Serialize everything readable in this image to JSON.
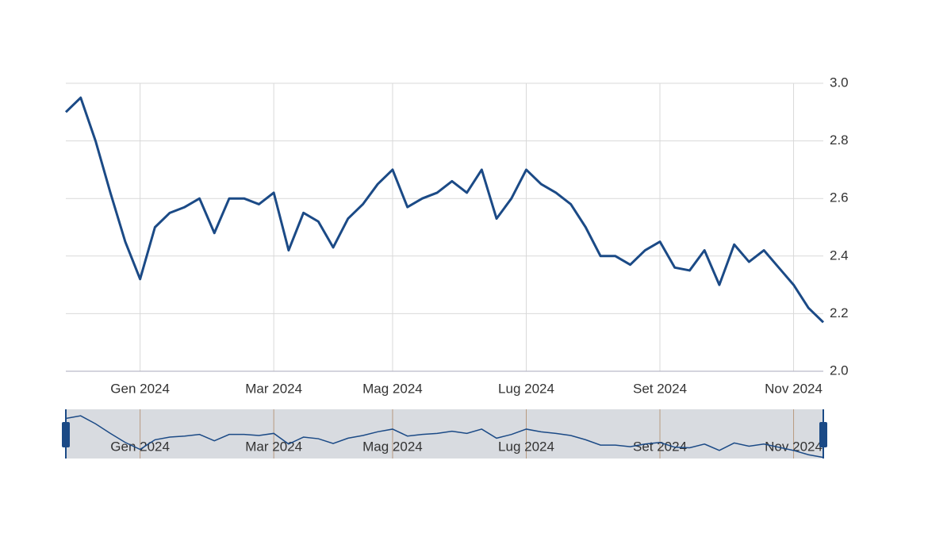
{
  "chart_data": {
    "type": "line",
    "categories": [
      null,
      null,
      null,
      null,
      null,
      "Gen 2024",
      null,
      null,
      null,
      null,
      null,
      null,
      null,
      null,
      "Mar 2024",
      null,
      null,
      null,
      null,
      null,
      null,
      null,
      "Mag 2024",
      null,
      null,
      null,
      null,
      null,
      null,
      null,
      null,
      "Lug 2024",
      null,
      null,
      null,
      null,
      null,
      null,
      null,
      null,
      "Set 2024",
      null,
      null,
      null,
      null,
      null,
      null,
      null,
      null,
      "Nov 2024",
      null,
      null
    ],
    "series": [
      {
        "color": "#1b4a86",
        "values": [
          2.9,
          2.95,
          2.8,
          2.62,
          2.45,
          2.32,
          2.5,
          2.55,
          2.57,
          2.6,
          2.48,
          2.6,
          2.6,
          2.58,
          2.62,
          2.42,
          2.55,
          2.52,
          2.43,
          2.53,
          2.58,
          2.65,
          2.7,
          2.57,
          2.6,
          2.62,
          2.66,
          2.62,
          2.7,
          2.53,
          2.6,
          2.7,
          2.65,
          2.62,
          2.58,
          2.5,
          2.4,
          2.4,
          2.37,
          2.42,
          2.45,
          2.36,
          2.35,
          2.42,
          2.3,
          2.44,
          2.38,
          2.42,
          2.36,
          2.3,
          2.22,
          2.17
        ]
      }
    ],
    "ylim": [
      2.0,
      3.0
    ],
    "yticks": [
      {
        "value": 2.0,
        "label": "2.0"
      },
      2.2,
      2.4,
      2.6,
      2.8,
      {
        "value": 3.0,
        "label": "3.0"
      }
    ],
    "grid": true
  }
}
